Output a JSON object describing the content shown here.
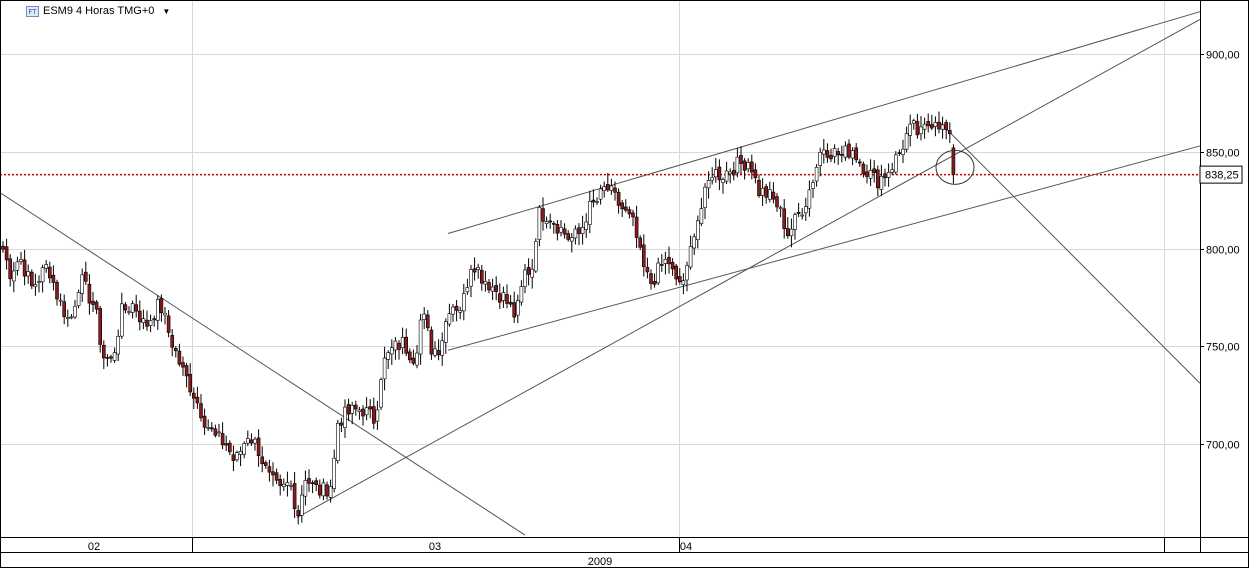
{
  "header": {
    "logo_text": "FT",
    "title": "ESM9 4 Horas TMG+0",
    "menu_icon": "caret-down-icon"
  },
  "price_badge": "838,25",
  "chart_data": {
    "type": "candlestick",
    "title": "ESM9 4 Horas TMG+0",
    "ylim": [
      652,
      928
    ],
    "y_ticks": [
      {
        "value": 700,
        "label": "700,00"
      },
      {
        "value": 750,
        "label": "750,00"
      },
      {
        "value": 800,
        "label": "800,00"
      },
      {
        "value": 850,
        "label": "850,00"
      },
      {
        "value": 900,
        "label": "900,00"
      }
    ],
    "x_range": [
      0,
      1200
    ],
    "month_labels": [
      {
        "x": 94,
        "label": "02"
      },
      {
        "x": 435,
        "label": "03"
      },
      {
        "x": 686,
        "label": "04"
      }
    ],
    "month_boundaries": [
      192,
      679,
      1164
    ],
    "year_label": "2009",
    "horizontal_line": {
      "value": 838.25,
      "color": "#cc0000",
      "style": "dotted"
    },
    "up_color": "#ffffff",
    "down_color": "#8b1a1a",
    "trendlines": [
      {
        "name": "falling-resistance",
        "from": [
          0,
          829
        ],
        "to": [
          525,
          653
        ]
      },
      {
        "name": "rising-support",
        "from": [
          297,
          662
        ],
        "to": [
          1200,
          918
        ]
      },
      {
        "name": "channel-upper",
        "from": [
          448,
          808
        ],
        "to": [
          1200,
          922
        ]
      },
      {
        "name": "channel-lower",
        "from": [
          448,
          748
        ],
        "to": [
          1200,
          853
        ]
      },
      {
        "name": "projected-decline",
        "from": [
          940,
          865
        ],
        "to": [
          1200,
          731
        ]
      }
    ],
    "highlight_circle": {
      "x": 955,
      "y": 842
    },
    "anchors": [
      [
        3,
        800
      ],
      [
        10,
        788
      ],
      [
        20,
        796
      ],
      [
        32,
        780
      ],
      [
        48,
        792
      ],
      [
        58,
        775
      ],
      [
        70,
        762
      ],
      [
        80,
        785
      ],
      [
        95,
        770
      ],
      [
        103,
        745
      ],
      [
        112,
        742
      ],
      [
        122,
        768
      ],
      [
        134,
        772
      ],
      [
        145,
        760
      ],
      [
        160,
        772
      ],
      [
        170,
        755
      ],
      [
        182,
        738
      ],
      [
        192,
        728
      ],
      [
        205,
        712
      ],
      [
        215,
        703
      ],
      [
        226,
        700
      ],
      [
        235,
        690
      ],
      [
        248,
        705
      ],
      [
        258,
        698
      ],
      [
        268,
        683
      ],
      [
        280,
        675
      ],
      [
        290,
        680
      ],
      [
        298,
        664
      ],
      [
        305,
        684
      ],
      [
        312,
        678
      ],
      [
        322,
        675
      ],
      [
        332,
        680
      ],
      [
        338,
        712
      ],
      [
        350,
        716
      ],
      [
        362,
        718
      ],
      [
        375,
        712
      ],
      [
        382,
        740
      ],
      [
        392,
        748
      ],
      [
        402,
        752
      ],
      [
        415,
        744
      ],
      [
        422,
        768
      ],
      [
        432,
        748
      ],
      [
        440,
        750
      ],
      [
        450,
        772
      ],
      [
        462,
        770
      ],
      [
        472,
        795
      ],
      [
        482,
        786
      ],
      [
        494,
        780
      ],
      [
        504,
        775
      ],
      [
        516,
        765
      ],
      [
        525,
        788
      ],
      [
        532,
        790
      ],
      [
        538,
        818
      ],
      [
        548,
        818
      ],
      [
        558,
        812
      ],
      [
        570,
        805
      ],
      [
        580,
        808
      ],
      [
        588,
        820
      ],
      [
        598,
        825
      ],
      [
        606,
        832
      ],
      [
        616,
        825
      ],
      [
        626,
        818
      ],
      [
        634,
        812
      ],
      [
        642,
        792
      ],
      [
        650,
        782
      ],
      [
        660,
        790
      ],
      [
        668,
        795
      ],
      [
        676,
        782
      ],
      [
        686,
        785
      ],
      [
        694,
        810
      ],
      [
        702,
        822
      ],
      [
        712,
        840
      ],
      [
        722,
        838
      ],
      [
        732,
        842
      ],
      [
        742,
        844
      ],
      [
        750,
        846
      ],
      [
        758,
        830
      ],
      [
        768,
        828
      ],
      [
        778,
        822
      ],
      [
        788,
        808
      ],
      [
        796,
        815
      ],
      [
        806,
        825
      ],
      [
        814,
        838
      ],
      [
        822,
        853
      ],
      [
        832,
        850
      ],
      [
        842,
        848
      ],
      [
        852,
        852
      ],
      [
        860,
        845
      ],
      [
        868,
        840
      ],
      [
        876,
        835
      ],
      [
        884,
        838
      ],
      [
        892,
        843
      ],
      [
        900,
        850
      ],
      [
        908,
        860
      ],
      [
        914,
        862
      ],
      [
        920,
        858
      ],
      [
        928,
        864
      ],
      [
        936,
        868
      ],
      [
        942,
        862
      ],
      [
        948,
        860
      ],
      [
        956,
        838
      ]
    ]
  }
}
